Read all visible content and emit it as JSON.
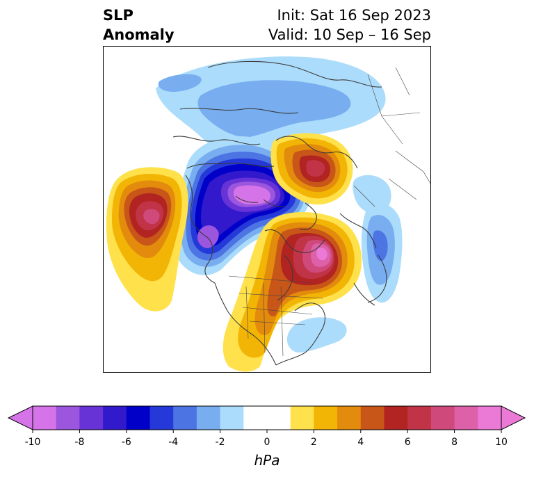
{
  "header": {
    "title_line1": "SLP",
    "title_line2": "Anomaly",
    "init_text": "Init: Sat 16 Sep 2023",
    "valid_text": "Valid: 10 Sep – 16 Sep"
  },
  "colorbar": {
    "units": "hPa",
    "ticks": [
      "-10",
      "-8",
      "-6",
      "-4",
      "-2",
      "0",
      "2",
      "4",
      "6",
      "8",
      "10"
    ],
    "levels": [
      -10,
      -9,
      -8,
      -7,
      -6,
      -5,
      -4,
      -3,
      -2,
      -1,
      1,
      2,
      3,
      4,
      5,
      6,
      7,
      8,
      9,
      10
    ],
    "under_color": "#d573e8",
    "over_color": "#ea7ad6",
    "colors": [
      "#d573e8",
      "#9b56dd",
      "#6733d7",
      "#3319cc",
      "#0000c8",
      "#2439d8",
      "#4d74e3",
      "#78aef0",
      "#acdcfb",
      "#ffffff",
      "#ffe14b",
      "#f3b505",
      "#e38b0d",
      "#c85618",
      "#b12422",
      "#c13448",
      "#cf4a7b",
      "#dc61a9",
      "#ea7ad6"
    ]
  }
}
